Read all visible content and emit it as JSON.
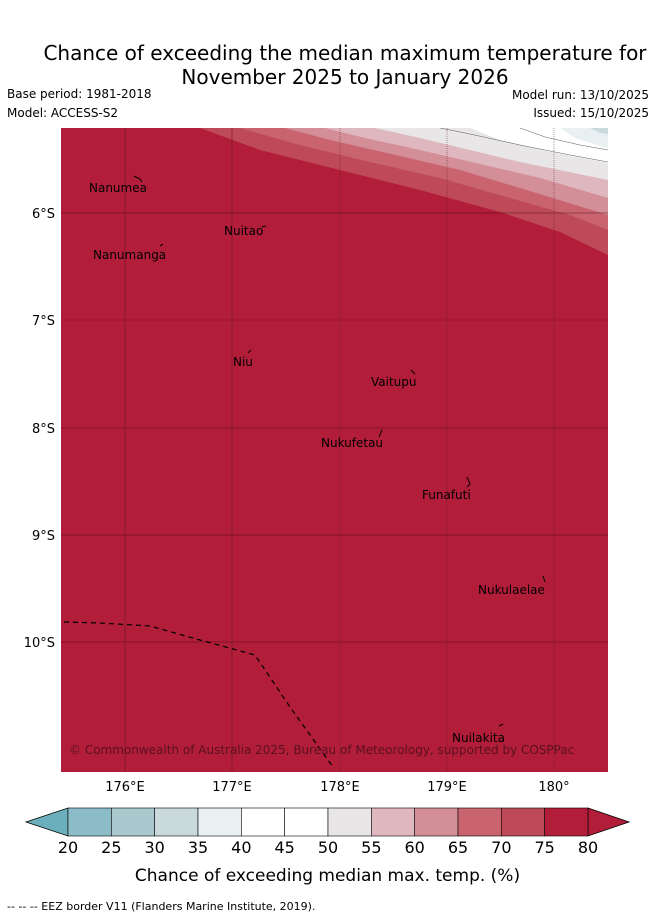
{
  "header": {
    "title_line1": "Chance of exceeding the median maximum temperature for",
    "title_line2": "November 2025 to January 2026",
    "base_period": "Base period: 1981-2018",
    "model": "Model: ACCESS-S2",
    "model_run": "Model run: 13/10/2025",
    "issued": "Issued: 15/10/2025"
  },
  "map": {
    "lat_labels": [
      "6°S",
      "7°S",
      "8°S",
      "9°S",
      "10°S"
    ],
    "lon_labels": [
      "176°E",
      "177°E",
      "178°E",
      "179°E",
      "180°"
    ],
    "islands": [
      "Nanumea",
      "Nuitao",
      "Nanumanga",
      "Niu",
      "Vaitupu",
      "Nukufetau",
      "Funafuti",
      "Nukulaelae",
      "Nuilakita"
    ],
    "copyright": "© Commonwealth of Australia 2025, Bureau of Meteorology, supported by COSPPac",
    "dominant_color": "#b21e3a"
  },
  "legend": {
    "ticks": [
      "20",
      "25",
      "30",
      "35",
      "40",
      "45",
      "50",
      "55",
      "60",
      "65",
      "70",
      "75",
      "80"
    ],
    "colors": [
      "#6cafbc",
      "#8cbcc8",
      "#a9c9cf",
      "#c9d9dc",
      "#e9f0f2",
      "#ffffff",
      "#ffffff",
      "#e8e6e6",
      "#dfb7be",
      "#d38e98",
      "#c9646f",
      "#bf4a57",
      "#b21e3a"
    ],
    "label": "Chance of exceeding median max. temp. (%)"
  },
  "footer": {
    "eez_note": "--  --  -- EEZ border V11 (Flanders Marine Institute, 2019)."
  }
}
